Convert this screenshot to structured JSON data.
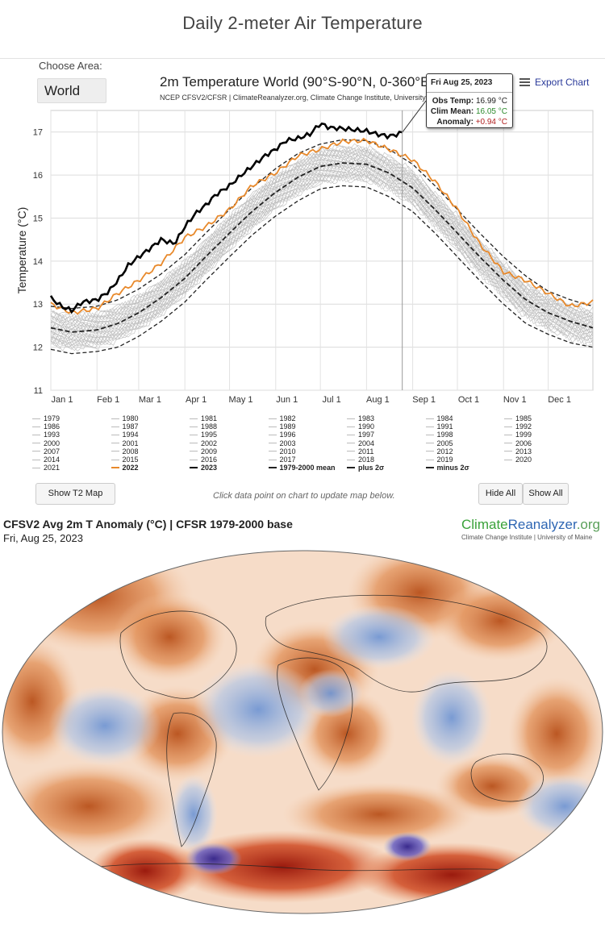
{
  "page": {
    "title": "Daily 2-meter Air Temperature"
  },
  "area": {
    "label": "Choose Area:",
    "value": "World"
  },
  "chart": {
    "title": "2m Temperature World (90°S-90°N, 0-360°E)",
    "subtitle": "NCEP CFSV2/CFSR | ClimateReanalyzer.org, Climate Change Institute, University of Maine",
    "export_label": "Export Chart",
    "hint": "Click data point on chart to update map below."
  },
  "tooltip": {
    "date": "Fri Aug 25, 2023",
    "obs_label": "Obs Temp:",
    "obs_value": "16.99 °C",
    "clim_label": "Clim Mean:",
    "clim_value": "16.05 °C",
    "anom_label": "Anomaly:",
    "anom_value": "+0.94 °C"
  },
  "legend": [
    "1979",
    "1980",
    "1981",
    "1982",
    "1983",
    "1984",
    "1985",
    "1986",
    "1987",
    "1988",
    "1989",
    "1990",
    "1991",
    "1992",
    "1993",
    "1994",
    "1995",
    "1996",
    "1997",
    "1998",
    "1999",
    "2000",
    "2001",
    "2002",
    "2003",
    "2004",
    "2005",
    "2006",
    "2007",
    "2008",
    "2009",
    "2010",
    "2011",
    "2012",
    "2013",
    "2014",
    "2015",
    "2016",
    "2017",
    "2018",
    "2019",
    "2020",
    "2021",
    "2022",
    "2023",
    "1979-2000 mean",
    "plus 2σ",
    "minus 2σ"
  ],
  "buttons": {
    "show_map": "Show T2 Map",
    "hide_all": "Hide All",
    "show_all": "Show All"
  },
  "map": {
    "title": "CFSV2 Avg 2m T Anomaly (°C) | CFSR 1979-2000 base",
    "date": "Fri, Aug 25, 2023",
    "brand_a": "Climate",
    "brand_b": "Reanalyzer",
    "brand_c": ".org",
    "brand_sub": "Climate Change Institute | University of Maine"
  },
  "colors": {
    "y2023": "#000000",
    "y2022": "#e8892b",
    "other": "#b8b8b8",
    "mean": "#222222",
    "warm": "#c5561a",
    "cool": "#5b86c9"
  },
  "chart_data": {
    "type": "line",
    "title": "2m Temperature World (90°S-90°N, 0-360°E)",
    "ylabel": "Temperature (°C)",
    "xlabel": "",
    "ylim": [
      11,
      17.5
    ],
    "yticks": [
      11,
      12,
      13,
      14,
      15,
      16,
      17
    ],
    "month_labels": [
      "Jan 1",
      "Feb 1",
      "Mar 1",
      "Apr 1",
      "May 1",
      "Jun 1",
      "Jul 1",
      "Aug 1",
      "Sep 1",
      "Oct 1",
      "Nov 1",
      "Dec 1"
    ],
    "month_days": [
      1,
      32,
      60,
      91,
      121,
      152,
      182,
      213,
      244,
      274,
      305,
      335
    ],
    "days_in_year": 365,
    "mean": {
      "day": [
        1,
        15,
        32,
        46,
        60,
        75,
        91,
        105,
        121,
        136,
        152,
        167,
        182,
        197,
        213,
        228,
        244,
        259,
        274,
        289,
        305,
        320,
        335,
        350,
        365
      ],
      "value": [
        12.45,
        12.35,
        12.4,
        12.55,
        12.8,
        13.15,
        13.6,
        14.1,
        14.65,
        15.15,
        15.6,
        15.95,
        16.2,
        16.28,
        16.25,
        16.05,
        15.7,
        15.2,
        14.65,
        14.1,
        13.55,
        13.1,
        12.8,
        12.6,
        12.45
      ]
    },
    "plus_2sigma": {
      "day": [
        1,
        15,
        32,
        46,
        60,
        75,
        91,
        105,
        121,
        136,
        152,
        167,
        182,
        197,
        213,
        228,
        244,
        259,
        274,
        289,
        305,
        320,
        335,
        350,
        365
      ],
      "value": [
        12.95,
        12.9,
        12.95,
        13.1,
        13.35,
        13.7,
        14.15,
        14.65,
        15.2,
        15.7,
        16.15,
        16.5,
        16.72,
        16.82,
        16.8,
        16.6,
        16.25,
        15.75,
        15.2,
        14.65,
        14.1,
        13.65,
        13.3,
        13.1,
        12.95
      ]
    },
    "minus_2sigma": {
      "day": [
        1,
        15,
        32,
        46,
        60,
        75,
        91,
        105,
        121,
        136,
        152,
        167,
        182,
        197,
        213,
        228,
        244,
        259,
        274,
        289,
        305,
        320,
        335,
        350,
        365
      ],
      "value": [
        11.95,
        11.85,
        11.9,
        12.0,
        12.25,
        12.6,
        13.05,
        13.55,
        14.1,
        14.6,
        15.05,
        15.4,
        15.68,
        15.75,
        15.72,
        15.5,
        15.15,
        14.65,
        14.1,
        13.55,
        13.0,
        12.55,
        12.3,
        12.1,
        12.0
      ]
    },
    "y2023": {
      "day": [
        1,
        8,
        15,
        22,
        32,
        40,
        46,
        53,
        60,
        68,
        75,
        84,
        91,
        98,
        105,
        112,
        121,
        129,
        136,
        145,
        152,
        159,
        167,
        175,
        182,
        188,
        197,
        205,
        213,
        220,
        228,
        231,
        237
      ],
      "value": [
        13.15,
        12.95,
        12.85,
        13.05,
        13.1,
        13.3,
        13.55,
        13.9,
        14.1,
        14.3,
        14.5,
        14.4,
        14.8,
        15.1,
        15.3,
        15.55,
        15.75,
        16.0,
        16.2,
        16.45,
        16.6,
        16.8,
        16.85,
        16.95,
        17.2,
        17.1,
        17.08,
        17.05,
        17.02,
        16.95,
        16.9,
        16.92,
        16.99
      ]
    },
    "y2022": {
      "day": [
        1,
        15,
        32,
        46,
        60,
        75,
        91,
        105,
        121,
        136,
        152,
        167,
        182,
        197,
        213,
        228,
        244,
        259,
        274,
        289,
        305,
        320,
        335,
        350,
        365
      ],
      "value": [
        13.0,
        12.8,
        12.9,
        13.25,
        13.55,
        13.95,
        14.55,
        14.8,
        15.2,
        15.75,
        16.05,
        16.45,
        16.6,
        16.78,
        16.8,
        16.6,
        16.35,
        15.85,
        15.2,
        14.4,
        13.75,
        13.55,
        13.25,
        12.95,
        13.05
      ]
    },
    "anomaly": {
      "obs_temp": 16.99,
      "clim_mean": 16.05,
      "anomaly": 0.94,
      "date": "Fri Aug 25, 2023"
    }
  }
}
